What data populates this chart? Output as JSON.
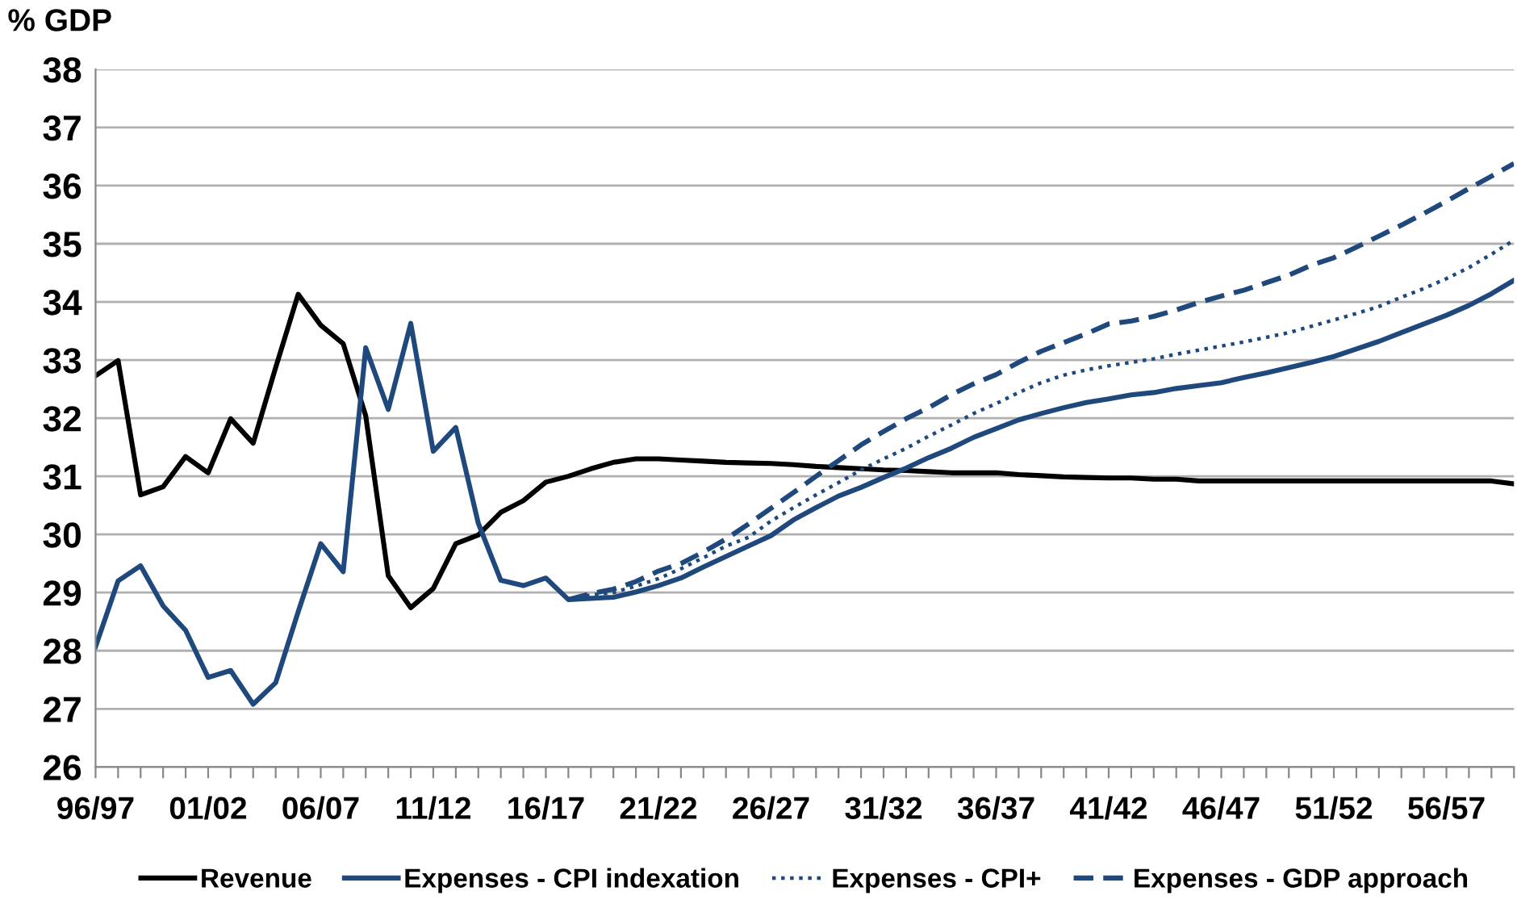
{
  "chart_data": {
    "type": "line",
    "ylabel": "% GDP",
    "categories": [
      "96/97",
      null,
      null,
      null,
      null,
      "01/02",
      null,
      null,
      null,
      null,
      "06/07",
      null,
      null,
      null,
      null,
      "11/12",
      null,
      null,
      null,
      null,
      "16/17",
      null,
      null,
      null,
      null,
      "21/22",
      null,
      null,
      null,
      null,
      "26/27",
      null,
      null,
      null,
      null,
      "31/32",
      null,
      null,
      null,
      null,
      "36/37",
      null,
      null,
      null,
      null,
      "41/42",
      null,
      null,
      null,
      null,
      "46/47",
      null,
      null,
      null,
      null,
      "51/52",
      null,
      null,
      null,
      null,
      "56/57",
      null,
      null,
      null
    ],
    "series": [
      {
        "name": "Revenue",
        "color": "#000000",
        "line_style": "solid",
        "values": [
          32.73,
          32.99,
          30.68,
          30.82,
          31.34,
          31.06,
          31.99,
          31.57,
          32.87,
          34.13,
          33.6,
          33.28,
          32.04,
          29.29,
          28.74,
          29.07,
          29.84,
          29.99,
          30.38,
          30.58,
          30.9,
          31.0,
          31.13,
          31.24,
          31.3,
          31.3,
          31.28,
          31.26,
          31.24,
          31.23,
          31.22,
          31.2,
          31.17,
          31.15,
          31.13,
          31.11,
          31.1,
          31.08,
          31.06,
          31.06,
          31.06,
          31.03,
          31.01,
          30.99,
          30.98,
          30.97,
          30.97,
          30.95,
          30.95,
          30.92,
          30.92,
          30.92,
          30.92,
          30.92,
          30.92,
          30.92,
          30.92,
          30.92,
          30.92,
          30.92,
          30.92,
          30.92,
          30.92,
          30.87
        ]
      },
      {
        "name": "Expenses - CPI indexation",
        "color": "#1f497d",
        "line_style": "solid",
        "values": [
          28.07,
          29.2,
          29.46,
          28.77,
          28.35,
          27.54,
          27.66,
          27.08,
          27.45,
          28.67,
          29.84,
          29.36,
          33.21,
          32.15,
          33.63,
          31.43,
          31.84,
          30.19,
          29.21,
          29.12,
          29.25,
          28.88,
          28.9,
          28.92,
          29.01,
          29.12,
          29.25,
          29.44,
          29.62,
          29.8,
          29.98,
          30.25,
          30.46,
          30.66,
          30.81,
          30.98,
          31.14,
          31.32,
          31.48,
          31.67,
          31.82,
          31.97,
          32.08,
          32.18,
          32.27,
          32.33,
          32.4,
          32.44,
          32.51,
          32.56,
          32.61,
          32.7,
          32.78,
          32.87,
          32.96,
          33.06,
          33.19,
          33.32,
          33.47,
          33.62,
          33.77,
          33.94,
          34.14,
          34.37
        ]
      },
      {
        "name": "Expenses - CPI+",
        "color": "#1f497d",
        "line_style": "dotted",
        "values": [
          null,
          null,
          null,
          null,
          null,
          null,
          null,
          null,
          null,
          null,
          null,
          null,
          null,
          null,
          null,
          null,
          null,
          null,
          null,
          null,
          null,
          28.88,
          28.96,
          29.0,
          29.11,
          29.24,
          29.41,
          29.6,
          29.8,
          29.95,
          30.23,
          30.46,
          30.68,
          30.89,
          31.11,
          31.3,
          31.48,
          31.69,
          31.88,
          32.08,
          32.25,
          32.44,
          32.61,
          32.74,
          32.83,
          32.9,
          32.96,
          33.02,
          33.1,
          33.17,
          33.24,
          33.31,
          33.39,
          33.47,
          33.58,
          33.69,
          33.8,
          33.92,
          34.08,
          34.23,
          34.4,
          34.59,
          34.82,
          35.06
        ]
      },
      {
        "name": "Expenses - GDP approach",
        "color": "#1f497d",
        "line_style": "dashed",
        "values": [
          null,
          null,
          null,
          null,
          null,
          null,
          null,
          null,
          null,
          null,
          null,
          null,
          null,
          null,
          null,
          null,
          null,
          null,
          null,
          null,
          null,
          28.88,
          28.98,
          29.06,
          29.19,
          29.37,
          29.5,
          29.7,
          29.92,
          30.18,
          30.45,
          30.72,
          31.0,
          31.27,
          31.54,
          31.77,
          31.99,
          32.18,
          32.4,
          32.59,
          32.75,
          32.96,
          33.15,
          33.3,
          33.45,
          33.62,
          33.67,
          33.75,
          33.86,
          33.99,
          34.1,
          34.2,
          34.33,
          34.46,
          34.63,
          34.76,
          34.94,
          35.13,
          35.32,
          35.52,
          35.73,
          35.95,
          36.16,
          36.38
        ]
      }
    ],
    "ylim": [
      26,
      38
    ],
    "yticks": [
      26,
      27,
      28,
      29,
      30,
      31,
      32,
      33,
      34,
      35,
      36,
      37,
      38
    ],
    "grid": "y",
    "legend": "bottom",
    "marker": "none"
  }
}
